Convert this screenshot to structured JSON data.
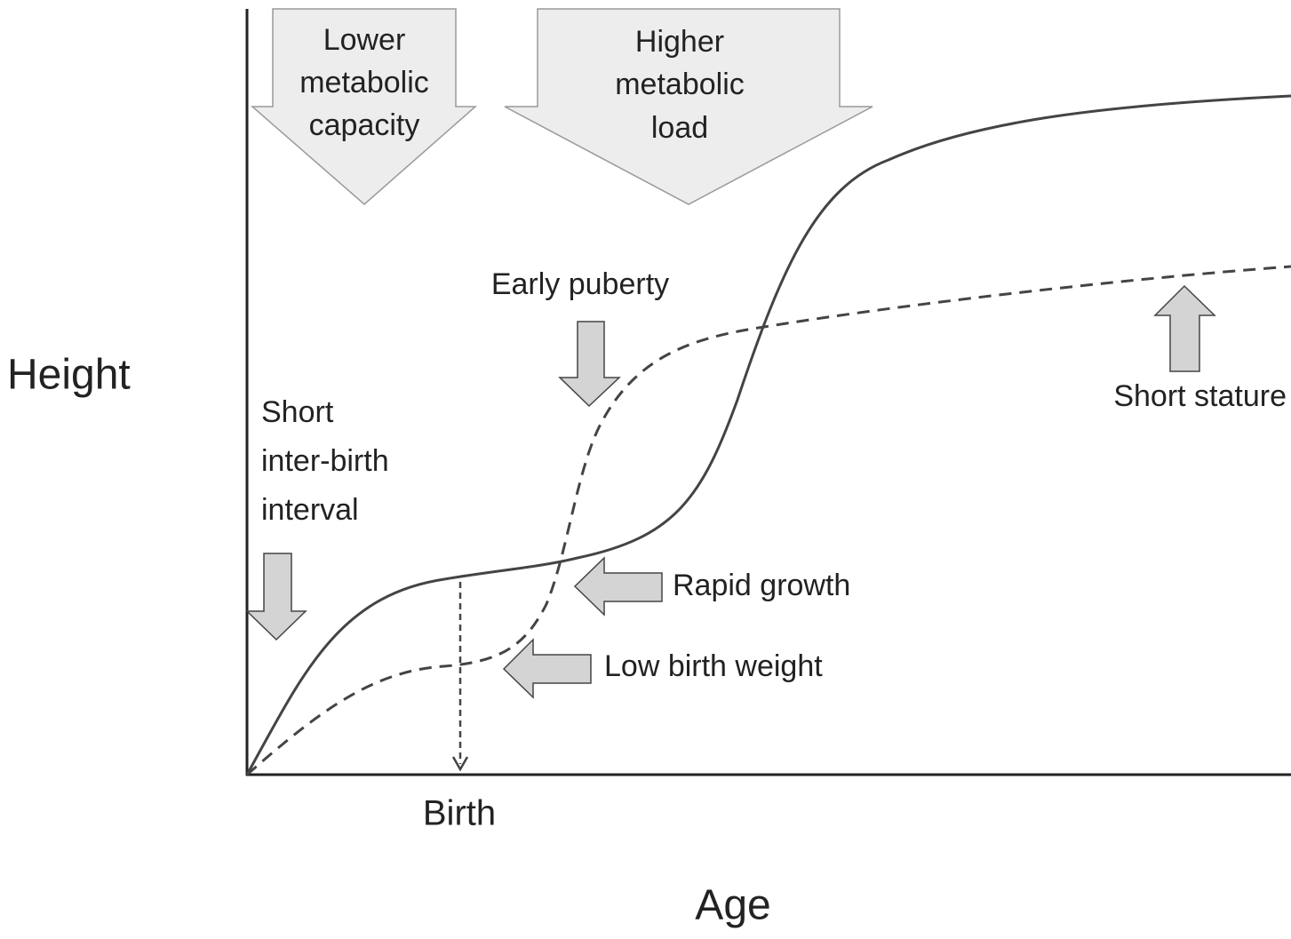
{
  "y_axis_label": "Height",
  "x_axis_label": "Age",
  "birth_label": "Birth",
  "arrows": [
    {
      "lines": [
        "Lower",
        "metabolic",
        "capacity"
      ]
    },
    {
      "lines": [
        "Higher",
        "metabolic",
        "load"
      ]
    },
    {
      "lines": [
        "Early puberty"
      ]
    },
    {
      "lines": [
        "Short",
        "inter-birth",
        "interval"
      ]
    },
    {
      "lines": [
        "Rapid growth"
      ]
    },
    {
      "lines": [
        "Low birth weight"
      ]
    },
    {
      "lines": [
        "Short stature"
      ]
    }
  ]
}
